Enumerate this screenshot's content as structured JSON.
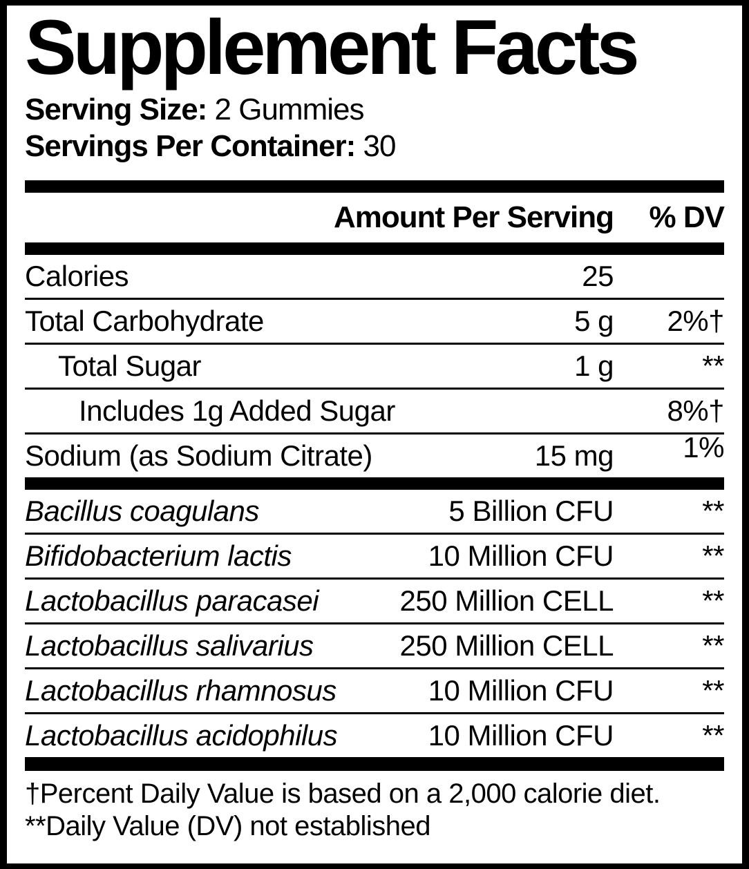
{
  "title": "Supplement Facts",
  "serving": {
    "size_label": "Serving Size:",
    "size_value": "2 Gummies",
    "container_label": "Servings Per Container:",
    "container_value": "30"
  },
  "header": {
    "amount": "Amount Per Serving",
    "dv": "% DV"
  },
  "nutrients": [
    {
      "name": "Calories",
      "amount": "25",
      "dv": "",
      "indent": 0
    },
    {
      "name": "Total Carbohydrate",
      "amount": "5 g",
      "dv": "2%†",
      "indent": 0
    },
    {
      "name": "Total Sugar",
      "amount": "1 g",
      "dv": "**",
      "indent": 1
    },
    {
      "name": "Includes 1g Added Sugar",
      "amount": "",
      "dv": "8%†",
      "indent": 2
    },
    {
      "name": "Sodium (as Sodium Citrate)",
      "amount": "15 mg",
      "dv": "1%",
      "indent": 0,
      "dv_raised": true
    }
  ],
  "probiotics": [
    {
      "name": "Bacillus coagulans",
      "amount": "5 Billion CFU",
      "dv": "**"
    },
    {
      "name": "Bifidobacterium lactis",
      "amount": "10 Million CFU",
      "dv": "**"
    },
    {
      "name": "Lactobacillus paracasei",
      "amount": "250 Million CELL",
      "dv": "**"
    },
    {
      "name": "Lactobacillus salivarius",
      "amount": "250 Million CELL",
      "dv": "**"
    },
    {
      "name": "Lactobacillus rhamnosus",
      "amount": "10 Million CFU",
      "dv": "**"
    },
    {
      "name": "Lactobacillus acidophilus",
      "amount": "10 Million CFU",
      "dv": "**"
    }
  ],
  "footnotes": [
    "†Percent Daily Value is based on a 2,000 calorie diet.",
    "**Daily Value (DV) not established"
  ],
  "colors": {
    "ink": "#000000",
    "background": "#ffffff"
  }
}
